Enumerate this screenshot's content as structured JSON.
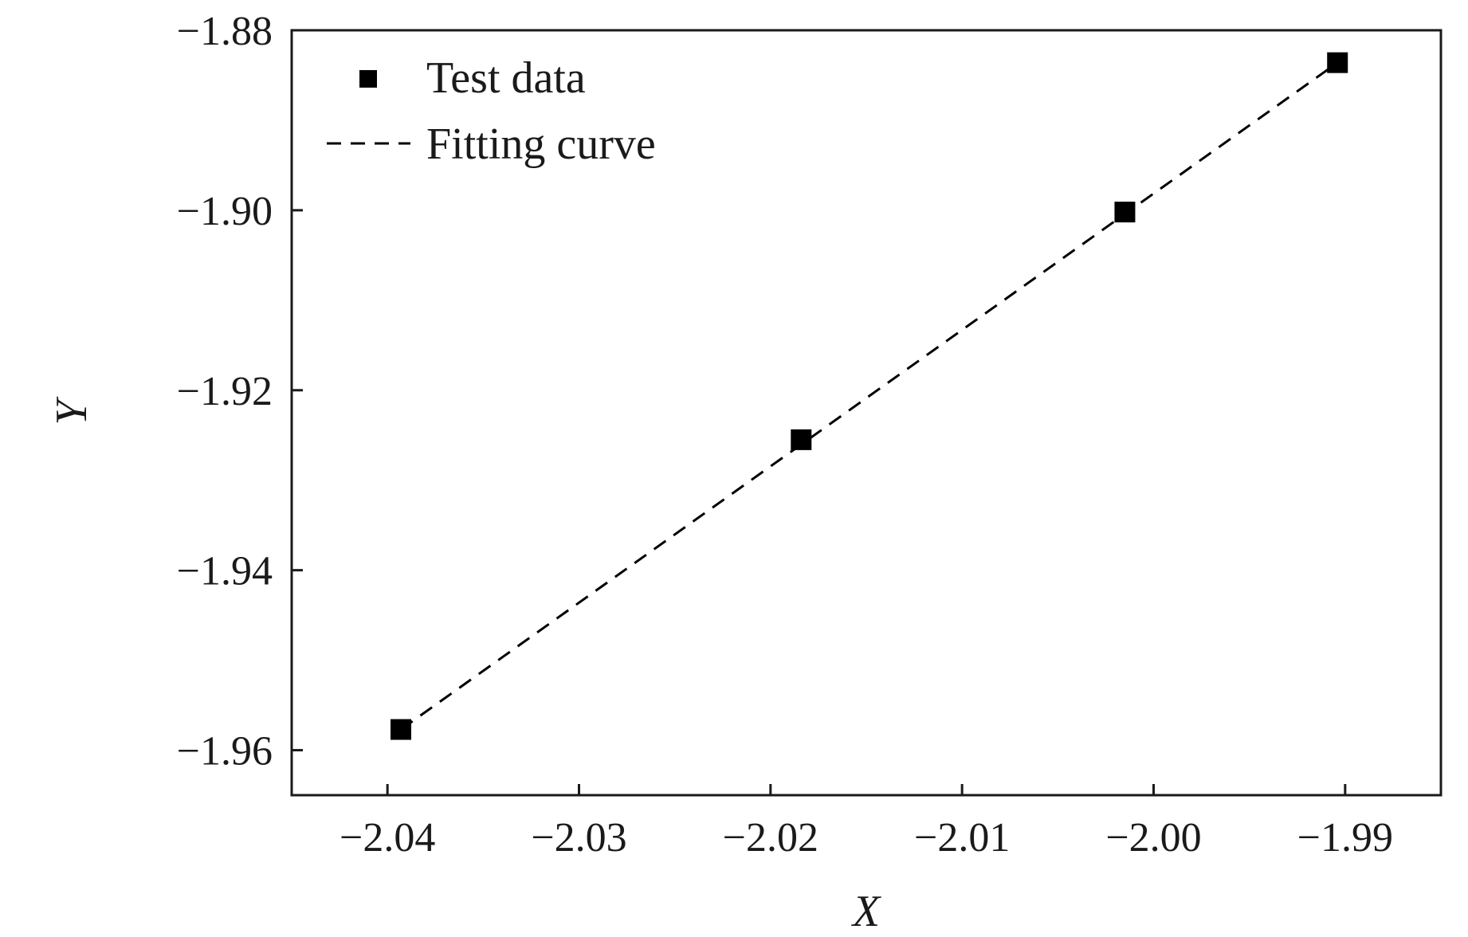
{
  "chart_data": {
    "type": "scatter",
    "title": "",
    "xlabel": "X",
    "ylabel": "Y",
    "xlim": [
      -2.045,
      -1.985
    ],
    "ylim": [
      -1.965,
      -1.88
    ],
    "x_ticks": [
      -2.04,
      -2.03,
      -2.02,
      -2.01,
      -2.0,
      -1.99
    ],
    "x_tick_labels": [
      "−2.04",
      "−2.03",
      "−2.02",
      "−2.01",
      "−2.00",
      "−1.99"
    ],
    "y_ticks": [
      -1.88,
      -1.9,
      -1.92,
      -1.94,
      -1.96
    ],
    "y_tick_labels": [
      "−1.88",
      "−1.90",
      "−1.92",
      "−1.94",
      "−1.96"
    ],
    "grid": false,
    "legend_position": "top-left",
    "series": [
      {
        "name": "Test data",
        "mode": "markers",
        "marker": "square",
        "color": "#000000",
        "x": [
          -2.0393,
          -2.0184,
          -2.0015,
          -1.9904
        ],
        "y": [
          -1.9577,
          -1.9255,
          -1.9002,
          -1.8836
        ]
      },
      {
        "name": "Fitting curve",
        "mode": "dashed-line",
        "color": "#000000",
        "x": [
          -2.0393,
          -1.9904
        ],
        "y": [
          -1.9577,
          -1.8836
        ]
      }
    ]
  }
}
